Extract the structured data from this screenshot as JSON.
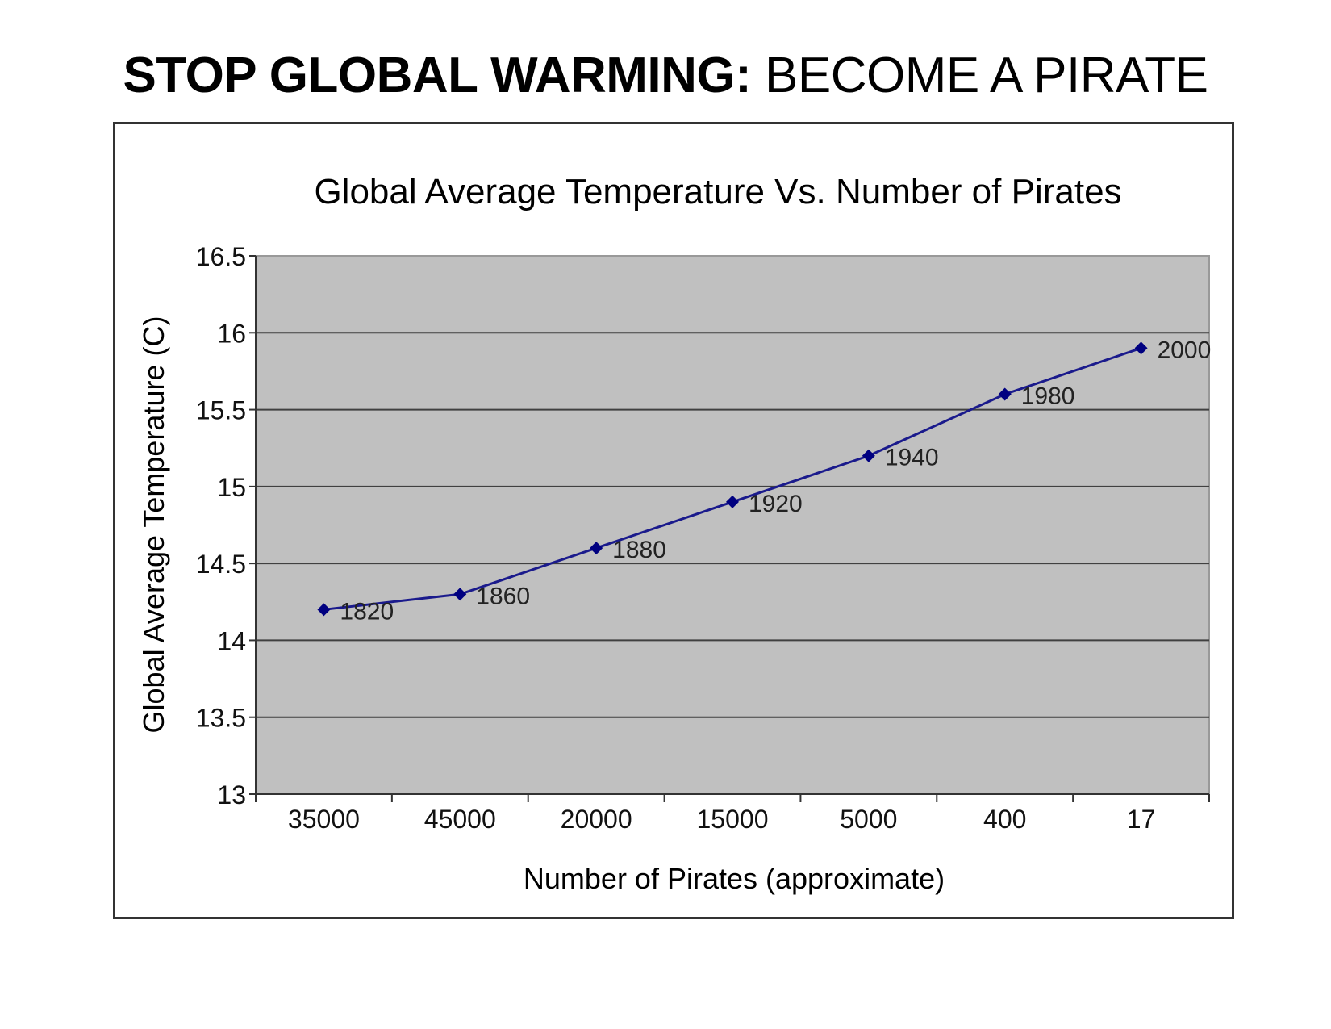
{
  "headline": {
    "bold": "STOP GLOBAL WARMING:",
    "normal": "BECOME A PIRATE"
  },
  "chart_data": {
    "type": "line",
    "title": "Global Average Temperature Vs. Number of Pirates",
    "xlabel": "Number of Pirates (approximate)",
    "ylabel": "Global Average Temperature (C)",
    "categories": [
      "35000",
      "45000",
      "20000",
      "15000",
      "5000",
      "400",
      "17"
    ],
    "point_labels": [
      "1820",
      "1860",
      "1880",
      "1920",
      "1940",
      "1980",
      "2000"
    ],
    "values": [
      14.2,
      14.3,
      14.6,
      14.9,
      15.2,
      15.6,
      15.9
    ],
    "ylim": [
      13,
      16.5
    ],
    "yticks": [
      "13",
      "13.5",
      "14",
      "14.5",
      "15",
      "15.5",
      "16",
      "16.5"
    ],
    "grid": true,
    "colors": {
      "line": "#1a1a8c",
      "plot_bg": "#c0c0c0",
      "grid": "#404040"
    }
  }
}
